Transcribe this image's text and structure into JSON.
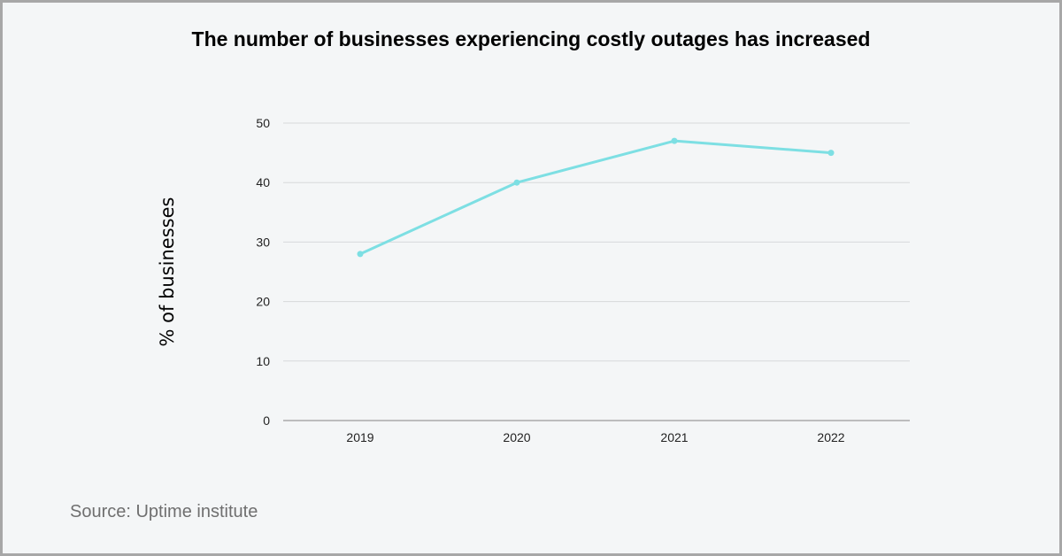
{
  "source_note": "Source: Uptime institute",
  "colors": {
    "line": "#7ddfe3",
    "grid": "#d7d9db",
    "axis": "#9a9a9a",
    "background": "#f4f6f7",
    "border": "#a7a7a7"
  },
  "chart_data": {
    "type": "line",
    "title": "The number of businesses experiencing costly outages has increased",
    "xlabel": "",
    "ylabel": "% of businesses",
    "categories": [
      "2019",
      "2020",
      "2021",
      "2022"
    ],
    "series": [
      {
        "values": [
          28,
          40,
          47,
          45
        ]
      }
    ],
    "ylim": [
      0,
      50
    ],
    "yticks": [
      0,
      10,
      20,
      30,
      40,
      50
    ],
    "grid": true,
    "legend": "none"
  }
}
